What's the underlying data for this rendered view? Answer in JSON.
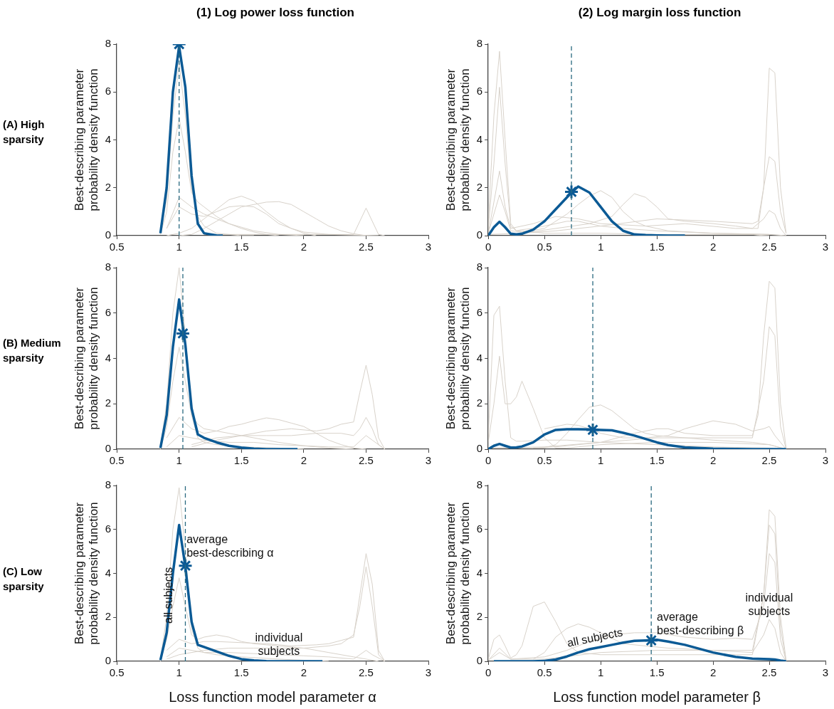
{
  "chart_data": [
    {
      "type": "line",
      "title": "(1) Log power loss function",
      "ylabel": "Best-describing parameter probability density function",
      "annotations": [
        "(A) High sparsity"
      ],
      "xlim": [
        0.5,
        3
      ],
      "xticks": [
        0.5,
        1,
        1.5,
        2,
        2.5,
        3
      ],
      "ylim": [
        0,
        8
      ],
      "yticks": [
        0,
        2,
        4,
        6,
        8
      ],
      "grid": false,
      "ref_lines": [
        {
          "axis": "x",
          "value": 1.0,
          "color": "#2a6a80",
          "line_style": "dashed"
        }
      ],
      "series": [
        {
          "color": "#d8d2ca",
          "x": [
            0.85,
            0.9,
            0.95,
            1.0,
            1.05,
            1.1,
            1.15,
            1.2,
            1.3,
            1.4,
            1.5,
            1.6
          ],
          "values": [
            0.1,
            1.5,
            5,
            7.2,
            5,
            2,
            0.8,
            0.4,
            0.1,
            0.05,
            0,
            0
          ]
        },
        {
          "color": "#d8d2ca",
          "x": [
            0.85,
            0.9,
            0.95,
            1.0,
            1.05,
            1.1,
            1.15,
            1.2,
            1.3,
            1.4,
            1.5,
            1.6,
            1.7,
            1.8
          ],
          "values": [
            0.05,
            1,
            3.5,
            4.9,
            3.5,
            1.8,
            1.4,
            1.2,
            0.8,
            0.5,
            0.3,
            0.15,
            0.05,
            0
          ]
        },
        {
          "color": "#d8d2ca",
          "x": [
            0.9,
            1.0,
            1.1,
            1.2,
            1.3,
            1.4,
            1.5,
            1.6,
            1.8,
            2.0
          ],
          "values": [
            0.3,
            1.6,
            1.2,
            0.9,
            0.7,
            0.5,
            0.35,
            0.2,
            0.05,
            0
          ]
        },
        {
          "color": "#d8d2ca",
          "x": [
            0.9,
            1.0,
            1.1,
            1.2,
            1.3,
            1.4,
            1.5,
            1.6,
            1.7,
            1.8,
            1.9,
            2.0,
            2.1
          ],
          "values": [
            0,
            0.1,
            0.3,
            0.7,
            1.1,
            1.5,
            1.65,
            1.45,
            1.0,
            0.6,
            0.3,
            0.1,
            0
          ]
        },
        {
          "color": "#d8d2ca",
          "x": [
            1.0,
            1.1,
            1.2,
            1.3,
            1.4,
            1.5,
            1.6,
            1.7,
            1.8,
            1.9,
            2.0,
            2.1,
            2.2,
            2.3,
            2.4,
            2.5
          ],
          "values": [
            0,
            0.05,
            0.3,
            0.6,
            0.9,
            1.2,
            1.3,
            1.4,
            1.42,
            1.3,
            1.0,
            0.7,
            0.4,
            0.2,
            0.08,
            0
          ]
        },
        {
          "color": "#d8d2ca",
          "x": [
            1.2,
            1.6,
            2.0,
            2.4,
            2.45,
            2.5,
            2.55,
            2.6,
            2.65
          ],
          "values": [
            0.05,
            0.05,
            0.05,
            0.05,
            0.6,
            1.15,
            0.6,
            0.05,
            0
          ]
        },
        {
          "color": "#d8d2ca",
          "x": [
            0.9,
            1.0,
            1.1,
            1.2,
            1.3,
            1.4,
            1.5,
            1.6,
            1.7,
            1.8,
            1.9,
            2.0,
            2.2,
            2.6
          ],
          "values": [
            0.3,
            1.2,
            0.9,
            0.8,
            1.0,
            1.2,
            1.25,
            1.2,
            0.9,
            0.5,
            0.3,
            0.15,
            0.05,
            0
          ]
        },
        {
          "color": "#0b5a95",
          "x": [
            0.85,
            0.9,
            0.95,
            1.0,
            1.05,
            1.1,
            1.15,
            1.2,
            1.3,
            1.35
          ],
          "values": [
            0.1,
            2.0,
            6.0,
            7.9,
            6.2,
            2.5,
            0.5,
            0.1,
            0.01,
            0
          ]
        },
        {
          "type": "scatter",
          "marker": "cross",
          "color": "#0b5a95",
          "x": [
            1.0
          ],
          "values": [
            8.0
          ]
        }
      ]
    },
    {
      "type": "line",
      "title": "(2) Log margin loss function",
      "ylabel": "Best-describing parameter probability density function",
      "xlim": [
        0,
        3
      ],
      "xticks": [
        0,
        0.5,
        1,
        1.5,
        2,
        2.5,
        3
      ],
      "ylim": [
        0,
        8
      ],
      "yticks": [
        0,
        2,
        4,
        6,
        8
      ],
      "grid": false,
      "ref_lines": [
        {
          "axis": "x",
          "value": 0.74,
          "color": "#2a6a80",
          "line_style": "dashed"
        }
      ],
      "series": [
        {
          "color": "#d8d2ca",
          "x": [
            0,
            0.05,
            0.1,
            0.15,
            0.2,
            0.25,
            0.3,
            0.4,
            0.5,
            0.7,
            1.0,
            1.5,
            2.0,
            2.35,
            2.4,
            2.5
          ],
          "values": [
            0.5,
            5,
            7.7,
            4,
            0.5,
            0.2,
            0.2,
            0.15,
            0.1,
            0.1,
            0.1,
            0.05,
            0.05,
            0.05,
            0.02,
            0
          ]
        },
        {
          "color": "#d8d2ca",
          "x": [
            0,
            0.05,
            0.1,
            0.15,
            0.2,
            0.25,
            0.3,
            0.4,
            0.5,
            0.6,
            0.7,
            0.8,
            0.9,
            1.0,
            1.2,
            1.5,
            2.0,
            2.5,
            2.65
          ],
          "values": [
            0.3,
            3,
            6.2,
            3,
            0.4,
            0.2,
            0.25,
            0.3,
            0.4,
            0.5,
            0.6,
            0.6,
            0.5,
            0.4,
            0.3,
            0.2,
            0.1,
            0.05,
            0
          ]
        },
        {
          "color": "#d8d2ca",
          "x": [
            0,
            0.1,
            0.15,
            0.2,
            0.3,
            0.5,
            0.7,
            0.8,
            0.9,
            1.0,
            1.1,
            1.2,
            1.3,
            1.4,
            1.6,
            2.0,
            2.5
          ],
          "values": [
            0.1,
            1.7,
            1,
            0.2,
            0.15,
            0.3,
            0.9,
            1.3,
            1.65,
            1.88,
            1.6,
            1.0,
            0.6,
            0.4,
            0.2,
            0.1,
            0.05
          ]
        },
        {
          "color": "#d8d2ca",
          "x": [
            0,
            0.3,
            0.6,
            0.9,
            1.1,
            1.2,
            1.3,
            1.4,
            1.5,
            1.6,
            1.75,
            2.0,
            2.2,
            2.35,
            2.4,
            2.45,
            2.5,
            2.55,
            2.6,
            2.65
          ],
          "values": [
            0.05,
            0.1,
            0.3,
            0.5,
            0.8,
            1.3,
            1.75,
            1.6,
            1.2,
            0.7,
            0.6,
            0.5,
            0.4,
            0.3,
            0.3,
            2,
            7.0,
            6.8,
            2,
            0.1
          ]
        },
        {
          "color": "#d8d2ca",
          "x": [
            0.3,
            0.6,
            1.0,
            1.5,
            2.0,
            2.35,
            2.4,
            2.45,
            2.5,
            2.55,
            2.6,
            2.65
          ],
          "values": [
            0.1,
            0.2,
            0.4,
            0.7,
            0.6,
            0.5,
            0.6,
            2,
            3.3,
            3.1,
            1,
            0.1
          ]
        },
        {
          "color": "#d8d2ca",
          "x": [
            0,
            0.1,
            0.15,
            0.2,
            0.4,
            0.6,
            0.8,
            1.0,
            1.4,
            1.75,
            2.2,
            2.35,
            2.45,
            2.5,
            2.55,
            2.6,
            2.65
          ],
          "values": [
            0.1,
            2.7,
            1.2,
            0.3,
            0.5,
            0.8,
            0.7,
            0.5,
            0.4,
            0.5,
            0.3,
            0.3,
            0.7,
            1.05,
            0.9,
            0.3,
            0
          ]
        },
        {
          "color": "#0b5a95",
          "x": [
            0,
            0.05,
            0.1,
            0.15,
            0.2,
            0.25,
            0.3,
            0.4,
            0.5,
            0.6,
            0.7,
            0.75,
            0.8,
            0.9,
            1.0,
            1.1,
            1.2,
            1.3,
            1.4,
            1.5,
            1.6,
            1.75
          ],
          "values": [
            0,
            0.35,
            0.58,
            0.35,
            0.08,
            0.05,
            0.08,
            0.25,
            0.6,
            1.1,
            1.6,
            1.85,
            2.05,
            1.8,
            1.2,
            0.6,
            0.2,
            0.05,
            0.02,
            0.01,
            0,
            0
          ]
        },
        {
          "type": "scatter",
          "marker": "cross",
          "color": "#0b5a95",
          "x": [
            0.74
          ],
          "values": [
            1.83
          ]
        }
      ]
    },
    {
      "type": "line",
      "ylabel": "Best-describing parameter probability density function",
      "annotations": [
        "(B) Medium sparsity"
      ],
      "xlim": [
        0.5,
        3
      ],
      "xticks": [
        0.5,
        1,
        1.5,
        2,
        2.5,
        3
      ],
      "ylim": [
        0,
        8
      ],
      "yticks": [
        0,
        2,
        4,
        6,
        8
      ],
      "grid": false,
      "ref_lines": [
        {
          "axis": "x",
          "value": 1.03,
          "color": "#2a6a80",
          "line_style": "dashed"
        }
      ],
      "series": [
        {
          "color": "#d8d2ca",
          "x": [
            0.85,
            0.9,
            0.95,
            1.0,
            1.05,
            1.1,
            1.15,
            1.2,
            1.3,
            1.5,
            1.8,
            2.0
          ],
          "values": [
            0.1,
            2,
            6,
            8,
            5,
            1.5,
            0.5,
            0.3,
            0.2,
            0.1,
            0.05,
            0
          ]
        },
        {
          "color": "#d8d2ca",
          "x": [
            0.85,
            0.9,
            0.95,
            1.0,
            1.05,
            1.1,
            1.15,
            1.2,
            1.3,
            1.4,
            1.5,
            1.6,
            1.7,
            1.8,
            2.0,
            2.2,
            2.4
          ],
          "values": [
            0,
            1,
            3,
            4.5,
            3,
            1.5,
            1.1,
            0.9,
            0.8,
            0.7,
            0.6,
            0.5,
            0.4,
            0.3,
            0.15,
            0.05,
            0
          ]
        },
        {
          "color": "#d8d2ca",
          "x": [
            0.9,
            1.0,
            1.1,
            1.2,
            1.3,
            1.4,
            1.5,
            1.6,
            1.7,
            1.8,
            1.9,
            2.0,
            2.1,
            2.2,
            2.3,
            2.4,
            2.5
          ],
          "values": [
            0.5,
            1.4,
            0.9,
            0.7,
            0.8,
            1.0,
            1.1,
            1.25,
            1.38,
            1.3,
            1.15,
            1.0,
            0.7,
            0.4,
            0.2,
            0.05,
            0
          ]
        },
        {
          "color": "#d8d2ca",
          "x": [
            1.1,
            1.3,
            1.5,
            1.7,
            1.9,
            2.1,
            2.2,
            2.3,
            2.4,
            2.45,
            2.5,
            2.55,
            2.6,
            2.65
          ],
          "values": [
            0.1,
            0.4,
            0.6,
            0.8,
            0.9,
            0.8,
            0.9,
            1.1,
            1.2,
            2.5,
            3.7,
            2.4,
            0.5,
            0
          ]
        },
        {
          "color": "#d8d2ca",
          "x": [
            1.1,
            1.3,
            1.5,
            1.7,
            1.9,
            2.1,
            2.3,
            2.4,
            2.45,
            2.5,
            2.55,
            2.6,
            2.65
          ],
          "values": [
            0.2,
            0.5,
            0.6,
            0.6,
            0.6,
            0.7,
            0.7,
            0.6,
            0.9,
            1.4,
            0.9,
            0.2,
            0
          ]
        },
        {
          "color": "#d8d2ca",
          "x": [
            0.9,
            1.0,
            1.1,
            1.2,
            1.4,
            1.6,
            1.8,
            2.0,
            2.2,
            2.4,
            2.5,
            2.55,
            2.65
          ],
          "values": [
            0.1,
            0.6,
            0.5,
            0.4,
            0.3,
            0.3,
            0.2,
            0.15,
            0.1,
            0.1,
            0.6,
            0.4,
            0
          ]
        },
        {
          "color": "#0b5a95",
          "x": [
            0.85,
            0.9,
            0.95,
            1.0,
            1.05,
            1.1,
            1.15,
            1.2,
            1.3,
            1.4,
            1.5,
            1.6,
            1.7,
            1.8,
            1.95
          ],
          "values": [
            0.05,
            1.5,
            4.5,
            6.6,
            4.6,
            1.8,
            0.65,
            0.5,
            0.3,
            0.15,
            0.07,
            0.02,
            0,
            0,
            0
          ]
        },
        {
          "type": "scatter",
          "marker": "cross",
          "color": "#0b5a95",
          "x": [
            1.03
          ],
          "values": [
            5.1
          ]
        }
      ]
    },
    {
      "type": "line",
      "ylabel": "Best-describing parameter probability density function",
      "xlim": [
        0,
        3
      ],
      "xticks": [
        0,
        0.5,
        1,
        1.5,
        2,
        2.5,
        3
      ],
      "ylim": [
        0,
        8
      ],
      "yticks": [
        0,
        2,
        4,
        6,
        8
      ],
      "grid": false,
      "ref_lines": [
        {
          "axis": "x",
          "value": 0.93,
          "color": "#2a6a80",
          "line_style": "dashed"
        }
      ],
      "series": [
        {
          "color": "#d8d2ca",
          "x": [
            0,
            0.05,
            0.1,
            0.15,
            0.2,
            0.25,
            0.3,
            0.5,
            0.7,
            1.0,
            1.5,
            2.0,
            2.5,
            2.65
          ],
          "values": [
            0.5,
            5.9,
            6.3,
            3,
            0.5,
            0.35,
            0.35,
            0.4,
            0.4,
            0.3,
            0.2,
            0.1,
            0.05,
            0
          ]
        },
        {
          "color": "#d8d2ca",
          "x": [
            0,
            0.05,
            0.1,
            0.15,
            0.2,
            0.25,
            0.3,
            0.4,
            0.5,
            0.6,
            0.7,
            0.8,
            1.0,
            1.5,
            2.0,
            2.5,
            2.65
          ],
          "values": [
            0.3,
            2,
            4.1,
            2,
            2.0,
            2.3,
            3.0,
            1.8,
            0.5,
            0.05,
            0.05,
            0.1,
            0.2,
            0.3,
            0.3,
            0.2,
            0
          ]
        },
        {
          "color": "#d8d2ca",
          "x": [
            0.4,
            0.5,
            0.6,
            0.7,
            0.8,
            0.9,
            1.0,
            1.1,
            1.2,
            1.3,
            1.4,
            1.5,
            1.75,
            2.0,
            2.35,
            2.5,
            2.65
          ],
          "values": [
            0.05,
            0.05,
            0.2,
            0.7,
            1.3,
            1.85,
            1.95,
            1.7,
            1.3,
            0.9,
            0.7,
            0.6,
            0.5,
            0.4,
            0.3,
            0.2,
            0
          ]
        },
        {
          "color": "#d8d2ca",
          "x": [
            0.5,
            0.6,
            0.7,
            0.8,
            0.9,
            1.0,
            1.2,
            1.4,
            1.6,
            1.75,
            2.0,
            2.2,
            2.35,
            2.45,
            2.5,
            2.55,
            2.65
          ],
          "values": [
            0.9,
            1.0,
            1.1,
            1.05,
            0.9,
            0.7,
            0.5,
            0.5,
            0.6,
            0.9,
            1.25,
            1.1,
            0.8,
            0.9,
            1.0,
            0.6,
            0
          ]
        },
        {
          "color": "#d8d2ca",
          "x": [
            0,
            0.3,
            0.6,
            1.0,
            1.3,
            1.5,
            1.6,
            1.75,
            2.0,
            2.35,
            2.4,
            2.45,
            2.5,
            2.55,
            2.6,
            2.65
          ],
          "values": [
            0.05,
            0.05,
            0.1,
            0.3,
            0.7,
            0.9,
            0.9,
            0.7,
            0.6,
            0.6,
            1.5,
            5,
            7.4,
            7.1,
            2,
            0.05
          ]
        },
        {
          "color": "#d8d2ca",
          "x": [
            0,
            0.5,
            1.0,
            1.5,
            2.0,
            2.35,
            2.45,
            2.5,
            2.55,
            2.6,
            2.65
          ],
          "values": [
            0.05,
            0.1,
            0.3,
            0.5,
            0.5,
            0.5,
            3,
            5.4,
            5,
            1,
            0
          ]
        },
        {
          "color": "#0b5a95",
          "x": [
            0,
            0.05,
            0.1,
            0.15,
            0.2,
            0.25,
            0.3,
            0.4,
            0.5,
            0.6,
            0.7,
            0.8,
            0.9,
            1.0,
            1.1,
            1.2,
            1.3,
            1.4,
            1.5,
            1.6,
            1.75,
            2.0,
            2.2,
            2.35,
            2.5,
            2.65
          ],
          "values": [
            0,
            0.15,
            0.23,
            0.15,
            0.07,
            0.08,
            0.12,
            0.3,
            0.65,
            0.85,
            0.88,
            0.88,
            0.87,
            0.85,
            0.83,
            0.72,
            0.6,
            0.45,
            0.3,
            0.18,
            0.08,
            0.02,
            0.01,
            0,
            0,
            0
          ]
        },
        {
          "type": "scatter",
          "marker": "cross",
          "color": "#0b5a95",
          "x": [
            0.93
          ],
          "values": [
            0.85
          ]
        }
      ]
    },
    {
      "type": "line",
      "xlabel": "Loss function model parameter α",
      "ylabel": "Best-describing parameter probability density function",
      "xlim": [
        0.5,
        3
      ],
      "xticks": [
        0.5,
        1,
        1.5,
        2,
        2.5,
        3
      ],
      "ylim": [
        0,
        8
      ],
      "yticks": [
        0,
        2,
        4,
        6,
        8
      ],
      "grid": false,
      "annotations": [
        "(C) Low sparsity",
        {
          "text": "all subjects",
          "x": 0.92,
          "y": 3
        },
        {
          "text": "average best-describing α",
          "x": 1.06,
          "y": 5.2
        },
        {
          "text": "individual subjects",
          "x": 1.8,
          "y": 0.75
        }
      ],
      "ref_lines": [
        {
          "axis": "x",
          "value": 1.05,
          "color": "#2a6a80",
          "line_style": "dashed"
        }
      ],
      "series": [
        {
          "color": "#d8d2ca",
          "x": [
            0.85,
            0.9,
            0.95,
            1.0,
            1.05,
            1.1,
            1.15,
            1.2,
            1.3,
            1.5,
            1.8,
            2.0,
            2.2
          ],
          "values": [
            0.1,
            2,
            6,
            7.9,
            5,
            1.5,
            0.6,
            0.4,
            0.3,
            0.2,
            0.1,
            0.05,
            0
          ]
        },
        {
          "color": "#d8d2ca",
          "x": [
            0.85,
            0.9,
            0.95,
            1.0,
            1.05,
            1.1,
            1.15,
            1.2,
            1.3,
            1.4,
            1.5,
            1.6,
            1.7,
            1.8,
            1.9,
            2.0,
            2.2,
            2.4,
            2.6
          ],
          "values": [
            0,
            1,
            2.5,
            3.8,
            2.5,
            1.2,
            1.0,
            1.1,
            1.2,
            1.1,
            0.9,
            0.8,
            0.75,
            0.7,
            0.65,
            0.6,
            0.4,
            0.2,
            0
          ]
        },
        {
          "color": "#d8d2ca",
          "x": [
            0.9,
            1.0,
            1.1,
            1.2,
            1.3,
            1.5,
            1.7,
            1.9,
            2.1,
            2.2,
            2.3,
            2.4,
            2.45,
            2.5,
            2.55,
            2.6,
            2.65
          ],
          "values": [
            0.5,
            1.0,
            0.8,
            0.9,
            0.9,
            0.85,
            0.8,
            0.7,
            0.75,
            0.8,
            0.95,
            1.1,
            3,
            4.9,
            3.5,
            0.5,
            0
          ]
        },
        {
          "color": "#d8d2ca",
          "x": [
            0.9,
            1.0,
            1.2,
            1.4,
            1.6,
            1.8,
            2.0,
            2.2,
            2.3,
            2.4,
            2.45,
            2.5,
            2.55,
            2.6,
            2.65
          ],
          "values": [
            0.1,
            0.3,
            0.5,
            0.6,
            0.6,
            0.6,
            0.6,
            0.7,
            0.8,
            1.2,
            2.5,
            4.3,
            2.5,
            0.3,
            0
          ]
        },
        {
          "color": "#d8d2ca",
          "x": [
            0.9,
            1.0,
            1.2,
            1.4,
            1.6,
            1.8,
            2.0,
            2.2,
            2.4,
            2.5,
            2.55,
            2.65
          ],
          "values": [
            0.2,
            0.6,
            0.4,
            0.4,
            0.35,
            0.3,
            0.25,
            0.2,
            0.1,
            0.5,
            0.3,
            0
          ]
        },
        {
          "color": "#0b5a95",
          "x": [
            0.85,
            0.9,
            0.95,
            1.0,
            1.05,
            1.1,
            1.15,
            1.2,
            1.3,
            1.4,
            1.5,
            1.6,
            1.7,
            1.8,
            2.0,
            2.15
          ],
          "values": [
            0.05,
            1.3,
            4,
            6.2,
            4.3,
            1.8,
            0.75,
            0.65,
            0.45,
            0.25,
            0.1,
            0.04,
            0.01,
            0,
            0,
            0
          ]
        },
        {
          "type": "scatter",
          "marker": "cross",
          "color": "#0b5a95",
          "x": [
            1.05
          ],
          "values": [
            4.35
          ]
        }
      ]
    },
    {
      "type": "line",
      "xlabel": "Loss function model parameter β",
      "ylabel": "Best-describing parameter probability density function",
      "xlim": [
        0,
        3
      ],
      "xticks": [
        0,
        0.5,
        1,
        1.5,
        2,
        2.5,
        3
      ],
      "ylim": [
        0,
        8
      ],
      "yticks": [
        0,
        2,
        4,
        6,
        8
      ],
      "grid": false,
      "annotations": [
        {
          "text": "all subjects",
          "x": 0.95,
          "y": 1.05
        },
        "average best-describing β",
        "individual subjects"
      ],
      "ref_lines": [
        {
          "axis": "x",
          "value": 1.45,
          "color": "#2a6a80",
          "line_style": "dashed"
        }
      ],
      "series": [
        {
          "color": "#d8d2ca",
          "x": [
            0,
            0.05,
            0.1,
            0.15,
            0.2,
            0.25,
            0.3,
            0.4,
            0.5,
            0.6,
            0.7,
            0.8,
            1.0,
            1.5,
            2.0,
            2.35,
            2.45,
            2.5,
            2.55,
            2.6,
            2.65
          ],
          "values": [
            0.1,
            1,
            1.2,
            0.7,
            0.15,
            0.3,
            0.7,
            2.5,
            2.7,
            1.8,
            0.8,
            0.4,
            0.3,
            0.3,
            0.3,
            0.3,
            3,
            6.9,
            6.6,
            2,
            0.05
          ]
        },
        {
          "color": "#d8d2ca",
          "x": [
            0.4,
            0.5,
            0.6,
            0.7,
            0.8,
            0.9,
            1.0,
            1.2,
            1.4,
            1.6,
            2.0,
            2.35,
            2.45,
            2.5,
            2.55,
            2.6,
            2.65
          ],
          "values": [
            0.1,
            0.4,
            1.1,
            1.5,
            1.7,
            1.55,
            1.3,
            0.8,
            0.7,
            0.6,
            0.5,
            0.5,
            3,
            6.2,
            5.8,
            1.5,
            0
          ]
        },
        {
          "color": "#d8d2ca",
          "x": [
            0,
            0.1,
            0.2,
            0.5,
            0.7,
            0.9,
            1.1,
            1.3,
            1.5,
            1.75,
            2.0,
            2.2,
            2.35,
            2.45,
            2.5,
            2.55,
            2.6,
            2.65
          ],
          "values": [
            0.05,
            0.6,
            0.1,
            0.2,
            0.5,
            0.9,
            1.2,
            1.3,
            1.3,
            1.1,
            1.0,
            1.05,
            1.0,
            2.5,
            4.9,
            4.5,
            1,
            0
          ]
        },
        {
          "color": "#d8d2ca",
          "x": [
            0,
            0.1,
            0.2,
            0.5,
            1.0,
            1.5,
            2.0,
            2.35,
            2.45,
            2.5,
            2.55,
            2.6,
            2.65
          ],
          "values": [
            0.05,
            0.4,
            0.1,
            0.1,
            0.4,
            0.5,
            0.5,
            0.4,
            1.2,
            1.9,
            1.5,
            0.4,
            0
          ]
        },
        {
          "color": "#0b5a95",
          "x": [
            0.05,
            0.2,
            0.4,
            0.5,
            0.6,
            0.7,
            0.8,
            0.9,
            1.0,
            1.1,
            1.2,
            1.3,
            1.4,
            1.5,
            1.6,
            1.75,
            2.0,
            2.2,
            2.35,
            2.5,
            2.55,
            2.6,
            2.65
          ],
          "values": [
            0,
            0,
            0,
            0.02,
            0.08,
            0.22,
            0.4,
            0.55,
            0.65,
            0.75,
            0.85,
            0.93,
            0.95,
            0.98,
            0.9,
            0.75,
            0.4,
            0.2,
            0.12,
            0.1,
            0.08,
            0.03,
            0
          ]
        },
        {
          "type": "scatter",
          "marker": "cross",
          "color": "#0b5a95",
          "x": [
            1.45
          ],
          "values": [
            0.95
          ]
        }
      ]
    }
  ]
}
